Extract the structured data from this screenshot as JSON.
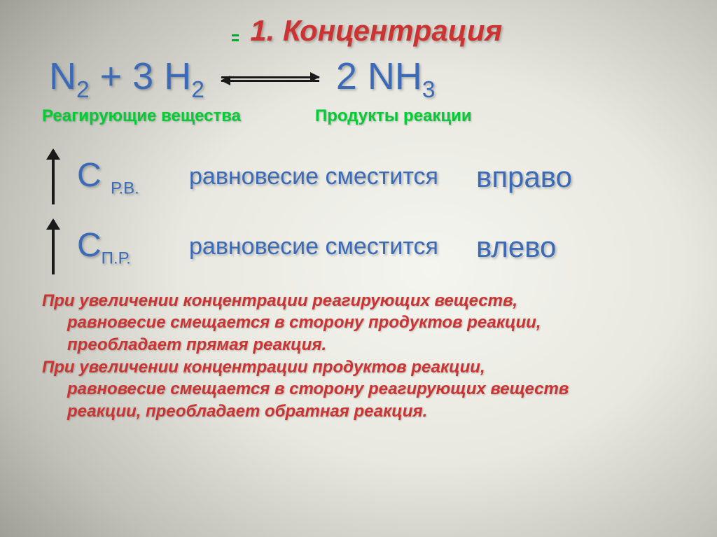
{
  "title": "1. Концентрация",
  "equation": {
    "left_html": "N<sub>2</sub> + 3 H<sub>2</sub>",
    "right_html": "2 NH<sub>3</sub>"
  },
  "labels": {
    "reactants": "Реагирующие вещества",
    "products": "Продукты реакции"
  },
  "rules": [
    {
      "symbol_html": "С <span class=\"subsc\">Р.В.</span>",
      "mid": "равновесие сместится",
      "dir": "вправо"
    },
    {
      "symbol_html": "С<span class=\"subsc\">П.Р.</span>",
      "mid": "равновесие сместится",
      "dir": "влево"
    }
  ],
  "desc": {
    "p1a": "При увеличении концентрации реагирующих веществ,",
    "p1b": "равновесие смещается в сторону продуктов реакции,",
    "p1c": "преобладает прямая реакция.",
    "p2a": "При увеличении концентрации продуктов реакции,",
    "p2b": "равновесие смещается в сторону реагирующих веществ",
    "p2c": "реакции, преобладает обратная реакция."
  },
  "colors": {
    "title": "#cc3333",
    "equation": "#3a6ab8",
    "labels": "#00cc33",
    "desc": "#cc3333",
    "arrow": "#1a1a1a"
  }
}
